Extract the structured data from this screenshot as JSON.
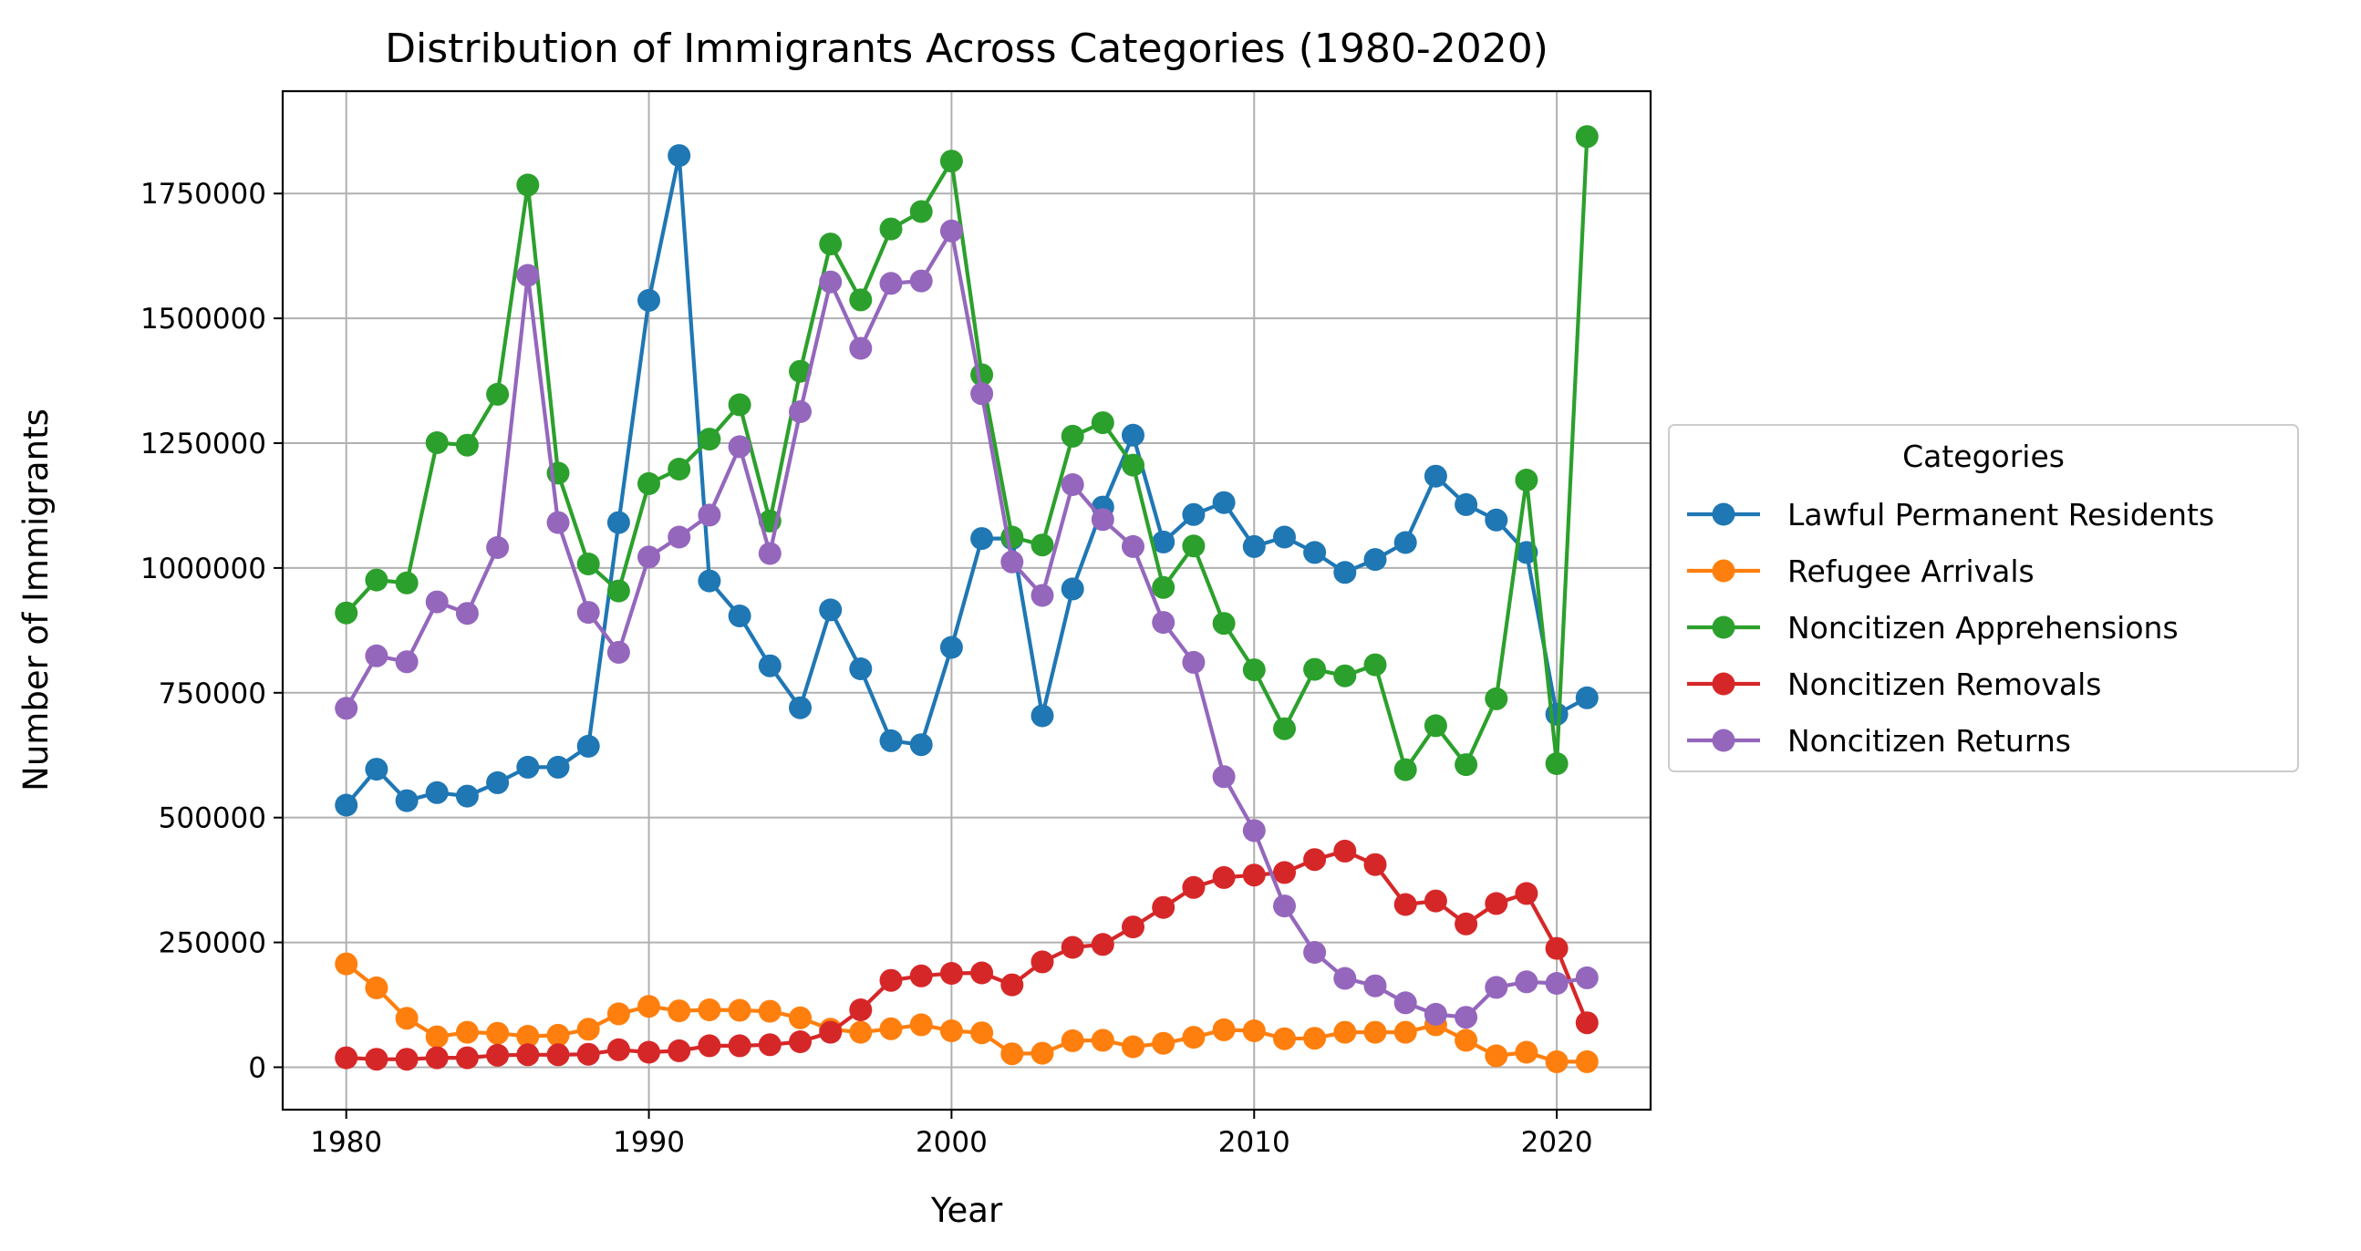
{
  "colors": {
    "lpr": "#1f77b4",
    "refugee": "#ff7f0e",
    "apprehensions": "#2ca02c",
    "removals": "#d62728",
    "returns": "#9467bd",
    "grid": "#b0b0b0"
  },
  "chart_data": {
    "type": "line",
    "title": "Distribution of Immigrants Across Categories (1980-2020)",
    "xlabel": "Year",
    "ylabel": "Number of Immigrants",
    "xlim": [
      1977.9,
      1923.1
    ],
    "ylim": [
      -85000,
      1955000
    ],
    "xticks": [
      1980,
      1990,
      2000,
      2010,
      2020
    ],
    "yticks": [
      0,
      250000,
      500000,
      750000,
      1000000,
      1250000,
      1500000,
      1750000
    ],
    "grid": true,
    "legend": {
      "title": "Categories",
      "placement": "outside-right"
    },
    "x": [
      1980,
      1981,
      1982,
      1983,
      1984,
      1985,
      1986,
      1987,
      1988,
      1989,
      1990,
      1991,
      1992,
      1993,
      1994,
      1995,
      1996,
      1997,
      1998,
      1999,
      2000,
      2001,
      2002,
      2003,
      2004,
      2005,
      2006,
      2007,
      2008,
      2009,
      2010,
      2011,
      2012,
      2013,
      2014,
      2015,
      2016,
      2017,
      2018,
      2019,
      2020,
      2021
    ],
    "series": [
      {
        "name": "Lawful Permanent Residents",
        "color_key": "lpr",
        "values": [
          525000,
          597000,
          534000,
          550000,
          543000,
          570000,
          601000,
          601000,
          643000,
          1091000,
          1536000,
          1826000,
          974000,
          904000,
          804000,
          720000,
          916000,
          798000,
          654000,
          646000,
          841000,
          1059000,
          1059000,
          704000,
          958000,
          1122000,
          1266000,
          1052000,
          1107000,
          1131000,
          1043000,
          1062000,
          1031000,
          991000,
          1017000,
          1051000,
          1184000,
          1127000,
          1096000,
          1031000,
          707000,
          740000
        ]
      },
      {
        "name": "Refugee Arrivals",
        "color_key": "refugee",
        "values": [
          207000,
          159000,
          98000,
          61000,
          70000,
          68000,
          62000,
          64000,
          76000,
          107000,
          122000,
          113000,
          115000,
          114000,
          112000,
          99000,
          76000,
          70000,
          77000,
          85000,
          73000,
          69000,
          27000,
          28000,
          53000,
          54000,
          41000,
          48000,
          60000,
          75000,
          73000,
          57000,
          58000,
          70000,
          70000,
          70000,
          85000,
          54000,
          23000,
          30000,
          11000,
          11000
        ]
      },
      {
        "name": "Noncitizen Apprehensions",
        "color_key": "apprehensions",
        "values": [
          910000,
          976000,
          970000,
          1251000,
          1246000,
          1348000,
          1767000,
          1190000,
          1008000,
          954000,
          1169000,
          1198000,
          1258000,
          1327000,
          1094000,
          1394000,
          1649000,
          1537000,
          1679000,
          1714000,
          1815000,
          1387000,
          1062000,
          1046000,
          1264000,
          1291000,
          1206000,
          961000,
          1044000,
          889000,
          796000,
          678000,
          797000,
          784000,
          806000,
          596000,
          684000,
          606000,
          738000,
          1176000,
          608000,
          1864000
        ]
      },
      {
        "name": "Noncitizen Removals",
        "color_key": "removals",
        "values": [
          19000,
          16000,
          16000,
          19000,
          19000,
          24000,
          25000,
          25000,
          26000,
          35000,
          30000,
          33000,
          43000,
          43000,
          45000,
          51000,
          70000,
          115000,
          174000,
          183000,
          188000,
          189000,
          165000,
          211000,
          240000,
          246000,
          281000,
          320000,
          360000,
          380000,
          385000,
          390000,
          416000,
          433000,
          406000,
          326000,
          333000,
          287000,
          328000,
          348000,
          238000,
          89000
        ]
      },
      {
        "name": "Noncitizen Returns",
        "color_key": "returns",
        "values": [
          719000,
          824000,
          812000,
          932000,
          909000,
          1041000,
          1586000,
          1091000,
          911000,
          831000,
          1022000,
          1062000,
          1106000,
          1243000,
          1029000,
          1313000,
          1573000,
          1440000,
          1570000,
          1575000,
          1675000,
          1349000,
          1012000,
          945000,
          1167000,
          1097000,
          1043000,
          891000,
          811000,
          582000,
          474000,
          323000,
          230000,
          178000,
          163000,
          129000,
          106000,
          100000,
          160000,
          171000,
          168000,
          179000
        ]
      }
    ]
  }
}
